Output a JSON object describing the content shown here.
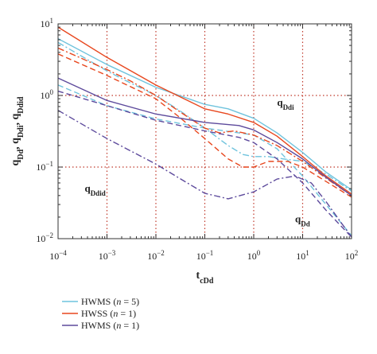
{
  "chart_data": {
    "type": "line",
    "xscale": "log",
    "yscale": "log",
    "xlim": [
      0.0001,
      100
    ],
    "ylim": [
      0.01,
      10
    ],
    "x_ticks": [
      {
        "base": "10",
        "exp": "−4"
      },
      {
        "base": "10",
        "exp": "−3"
      },
      {
        "base": "10",
        "exp": "−2"
      },
      {
        "base": "10",
        "exp": "−1"
      },
      {
        "base": "10",
        "exp": "0"
      },
      {
        "base": "10",
        "exp": "1"
      },
      {
        "base": "10",
        "exp": "2"
      }
    ],
    "y_ticks": [
      {
        "base": "10",
        "exp": "−2"
      },
      {
        "base": "10",
        "exp": "−1"
      },
      {
        "base": "10",
        "exp": "0"
      },
      {
        "base": "10",
        "exp": "1"
      }
    ],
    "xlabel": {
      "main": "t",
      "sub": "cDd"
    },
    "ylabel": [
      {
        "main": "q",
        "sub": "Dd"
      },
      {
        "sep": ", "
      },
      {
        "main": "q",
        "sub": "Ddi"
      },
      {
        "sep": ", "
      },
      {
        "main": "q",
        "sub": "Ddid"
      }
    ],
    "grid": "dotted red at decades",
    "legend_position": "bottom-left",
    "annotations": [
      {
        "main": "q",
        "sub": "Ddi",
        "at": [
          3,
          0.72
        ]
      },
      {
        "main": "q",
        "sub": "Ddid",
        "at": [
          0.00035,
          0.045
        ]
      },
      {
        "main": "q",
        "sub": "Dd",
        "at": [
          7.0,
          0.017
        ]
      }
    ],
    "legend": [
      {
        "pre": "HWMS (",
        "n": "n",
        "post": " = 5)",
        "color": "#6fc3dd"
      },
      {
        "pre": "HWSS (",
        "n": "n",
        "post": " = 1)",
        "color": "#e8471e"
      },
      {
        "pre": "HWMS (",
        "n": "n",
        "post": " = 1)",
        "color": "#5d4a9c"
      }
    ],
    "series": [
      {
        "legend_index": 0,
        "style": "solid",
        "color": "#6fc3dd",
        "points": [
          [
            0.0001,
            6.2
          ],
          [
            0.001,
            2.7
          ],
          [
            0.01,
            1.3
          ],
          [
            0.1,
            0.75
          ],
          [
            0.3,
            0.65
          ],
          [
            1,
            0.48
          ],
          [
            3,
            0.3
          ],
          [
            10,
            0.16
          ],
          [
            30,
            0.085
          ],
          [
            100,
            0.048
          ]
        ]
      },
      {
        "legend_index": 0,
        "style": "dashdot",
        "color": "#6fc3dd",
        "points": [
          [
            0.0001,
            5.5
          ],
          [
            0.001,
            2.2
          ],
          [
            0.003,
            1.5
          ],
          [
            0.01,
            1.0
          ],
          [
            0.03,
            0.62
          ],
          [
            0.1,
            0.35
          ],
          [
            0.3,
            0.2
          ],
          [
            0.6,
            0.15
          ],
          [
            1,
            0.14
          ],
          [
            2,
            0.14
          ],
          [
            4,
            0.13
          ],
          [
            10,
            0.12
          ],
          [
            30,
            0.08
          ],
          [
            100,
            0.046
          ]
        ]
      },
      {
        "legend_index": 0,
        "style": "dashed",
        "color": "#6fc3dd",
        "points": [
          [
            0.0001,
            1.4
          ],
          [
            0.001,
            0.72
          ],
          [
            0.01,
            0.47
          ],
          [
            0.1,
            0.35
          ],
          [
            0.5,
            0.3
          ],
          [
            1,
            0.28
          ],
          [
            3,
            0.18
          ],
          [
            10,
            0.075
          ],
          [
            30,
            0.03
          ],
          [
            100,
            0.011
          ]
        ]
      },
      {
        "legend_index": 1,
        "style": "solid",
        "color": "#e8471e",
        "points": [
          [
            0.0001,
            9.0
          ],
          [
            0.001,
            3.4
          ],
          [
            0.01,
            1.4
          ],
          [
            0.1,
            0.65
          ],
          [
            0.3,
            0.55
          ],
          [
            1,
            0.42
          ],
          [
            3,
            0.27
          ],
          [
            10,
            0.14
          ],
          [
            30,
            0.075
          ],
          [
            100,
            0.042
          ]
        ]
      },
      {
        "legend_index": 1,
        "style": "dashdot",
        "color": "#e8471e",
        "points": [
          [
            0.0001,
            4.6
          ],
          [
            0.001,
            2.3
          ],
          [
            0.003,
            1.6
          ],
          [
            0.01,
            1.0
          ],
          [
            0.03,
            0.6
          ],
          [
            0.1,
            0.35
          ],
          [
            0.2,
            0.3
          ],
          [
            0.4,
            0.32
          ],
          [
            1,
            0.28
          ],
          [
            3,
            0.2
          ],
          [
            10,
            0.12
          ],
          [
            30,
            0.07
          ],
          [
            100,
            0.04
          ]
        ]
      },
      {
        "legend_index": 1,
        "style": "dashed",
        "color": "#e8471e",
        "points": [
          [
            0.0001,
            3.8
          ],
          [
            0.001,
            1.9
          ],
          [
            0.01,
            0.9
          ],
          [
            0.03,
            0.5
          ],
          [
            0.1,
            0.25
          ],
          [
            0.3,
            0.13
          ],
          [
            0.6,
            0.1
          ],
          [
            1,
            0.1
          ],
          [
            2,
            0.12
          ],
          [
            5,
            0.12
          ],
          [
            10,
            0.1
          ],
          [
            30,
            0.063
          ],
          [
            100,
            0.038
          ]
        ]
      },
      {
        "legend_index": 2,
        "style": "solid",
        "color": "#5d4a9c",
        "points": [
          [
            0.0001,
            1.75
          ],
          [
            0.001,
            0.85
          ],
          [
            0.01,
            0.55
          ],
          [
            0.1,
            0.42
          ],
          [
            0.5,
            0.38
          ],
          [
            1,
            0.33
          ],
          [
            3,
            0.22
          ],
          [
            10,
            0.13
          ],
          [
            30,
            0.072
          ],
          [
            100,
            0.04
          ]
        ]
      },
      {
        "legend_index": 2,
        "style": "dashed",
        "color": "#5d4a9c",
        "points": [
          [
            0.0001,
            1.15
          ],
          [
            0.001,
            0.72
          ],
          [
            0.01,
            0.45
          ],
          [
            0.1,
            0.32
          ],
          [
            0.5,
            0.26
          ],
          [
            1,
            0.22
          ],
          [
            3,
            0.13
          ],
          [
            10,
            0.06
          ],
          [
            30,
            0.025
          ],
          [
            100,
            0.0105
          ]
        ]
      },
      {
        "legend_index": 2,
        "style": "dashdot",
        "color": "#5d4a9c",
        "points": [
          [
            0.0001,
            0.62
          ],
          [
            0.001,
            0.25
          ],
          [
            0.01,
            0.11
          ],
          [
            0.03,
            0.07
          ],
          [
            0.1,
            0.043
          ],
          [
            0.3,
            0.036
          ],
          [
            1,
            0.045
          ],
          [
            3,
            0.068
          ],
          [
            7,
            0.075
          ],
          [
            15,
            0.06
          ],
          [
            30,
            0.033
          ],
          [
            100,
            0.0105
          ]
        ]
      }
    ]
  }
}
